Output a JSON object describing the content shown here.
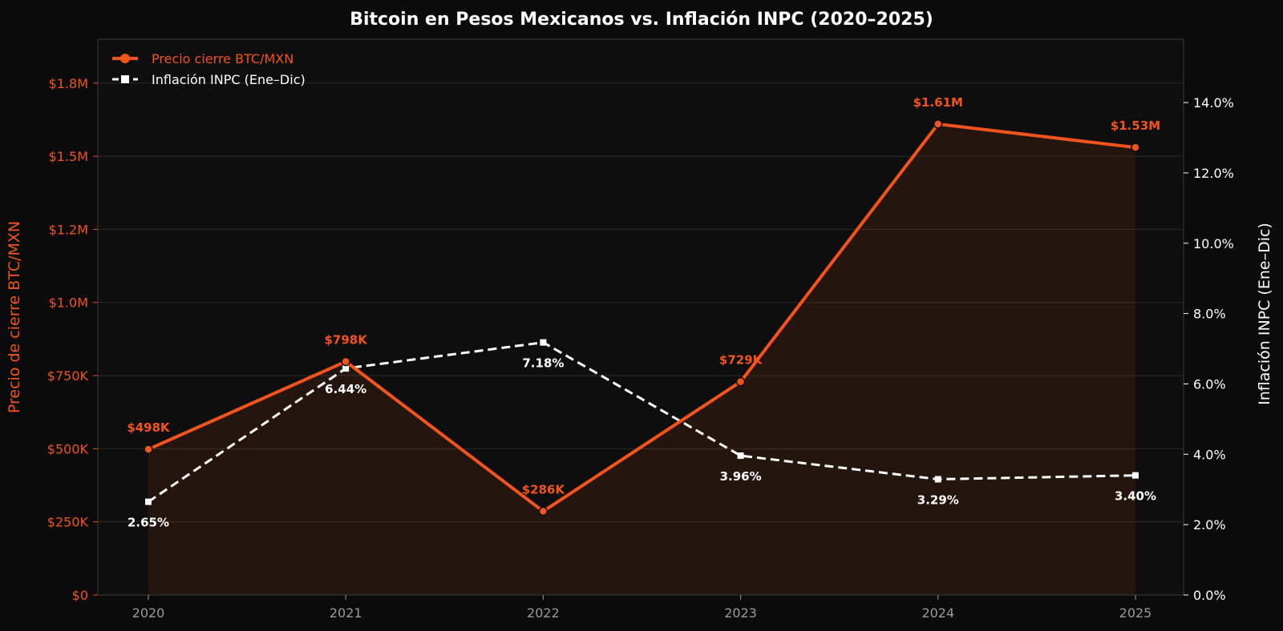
{
  "chart_data": {
    "type": "line",
    "title": "Bitcoin en Pesos Mexicanos vs. Inflación INPC (2020–2025)",
    "categories": [
      "2020",
      "2021",
      "2022",
      "2023",
      "2024",
      "2025"
    ],
    "ylabel": "Precio de cierre BTC/MXN",
    "y2label": "Inflación INPC (Ene–Dic)",
    "ylim": [
      0,
      1900000
    ],
    "y2lim": [
      0,
      15.8
    ],
    "yticks": [
      0,
      250000,
      500000,
      750000,
      1000000,
      1250000,
      1500000,
      1750000
    ],
    "yticklabels": [
      "$0",
      "$250K",
      "$500K",
      "$750K",
      "$1.0M",
      "$1.2M",
      "$1.5M",
      "$1.8M"
    ],
    "y2ticks": [
      0,
      2,
      4,
      6,
      8,
      10,
      12,
      14
    ],
    "y2ticklabels": [
      "0.0%",
      "2.0%",
      "4.0%",
      "6.0%",
      "8.0%",
      "10.0%",
      "12.0%",
      "14.0%"
    ],
    "grid": true,
    "legend_position": "top-left",
    "series": [
      {
        "name": "Precio cierre BTC/MXN",
        "axis": "left",
        "color": "#f2541b",
        "values": [
          498000,
          798000,
          286000,
          729000,
          1610000,
          1530000
        ],
        "labels": [
          "$498K",
          "$798K",
          "$286K",
          "$729K",
          "$1.61M",
          "$1.53M"
        ]
      },
      {
        "name": "Inflación INPC (Ene–Dic)",
        "axis": "right",
        "color": "#ffffff",
        "values": [
          2.65,
          6.44,
          7.18,
          3.96,
          3.29,
          3.4
        ],
        "labels": [
          "2.65%",
          "6.44%",
          "7.18%",
          "3.96%",
          "3.29%",
          "3.40%"
        ]
      }
    ]
  }
}
